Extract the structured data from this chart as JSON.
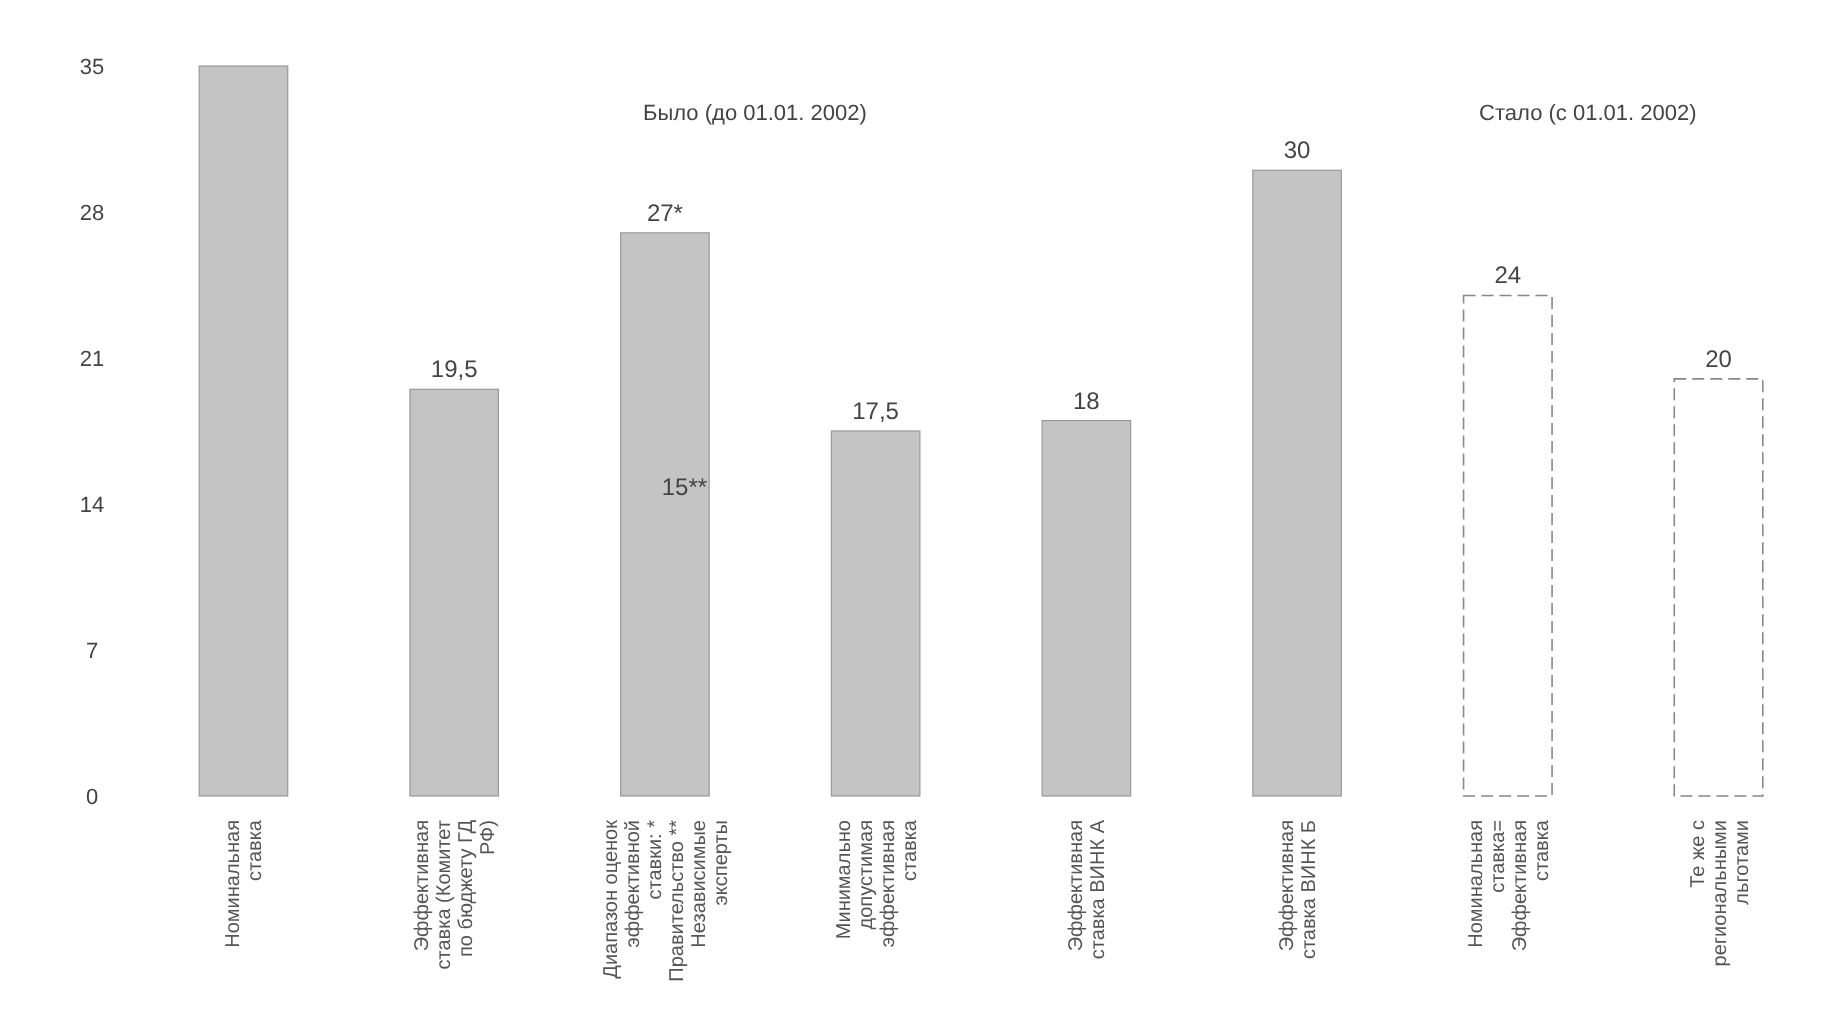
{
  "chart_data": {
    "type": "bar",
    "categories": [
      "Номинальная ставка",
      "Эффективная ставка (Комитет по бюджету ГД РФ)",
      "Диапазон оценок эффективной ставки: * Правительство ** Независимые эксперты",
      "Минимально допустимая эффективная ставка",
      "Эффективная ставка ВИНК А",
      "Эффективная ставка ВИНК Б",
      "Номинальная ставка= Эффективная ставка",
      "Те же с региональными льготами"
    ],
    "values": [
      35,
      19.5,
      27,
      17.5,
      18,
      30,
      24,
      20
    ],
    "colors": [
      "#c4c4c4",
      "#c4c4c4",
      "#c4c4c4",
      "#c4c4c4",
      "#c4c4c4",
      "#c4c4c4",
      "#ffffff",
      "#ffffff"
    ],
    "value_labels": [
      null,
      "19,5",
      "27*",
      "17,5",
      "18",
      "30",
      "24",
      "20"
    ],
    "ylim": [
      0,
      35
    ],
    "yticks": [
      0,
      7,
      14,
      21,
      28,
      35
    ],
    "annotations": [
      "Было (до 01.01. 2002)",
      "Стало (с 01.01. 2002)",
      "15**"
    ]
  }
}
